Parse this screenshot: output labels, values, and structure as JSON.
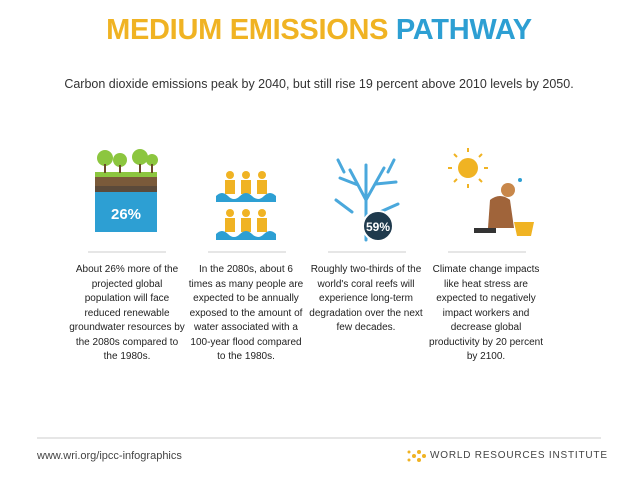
{
  "title": [
    "MEDIUM EMISSIONS",
    "PATHWAY"
  ],
  "subtitle": "Carbon dioxide emissions peak by 2040, but still rise 19 percent above 2010 levels by 2050.",
  "panels": [
    {
      "icon_label": "26%",
      "text": "About 26% more of the projected global population will face reduced renewable groundwater resources by the 2080s compared to the 1980s."
    },
    {
      "text": "In the 2080s, about 6 times as many people are expected to be annually exposed to the amount of water associated with a 100-year flood compared to the 1980s."
    },
    {
      "icon_label": "59%",
      "text": "Roughly two-thirds of the world's coral reefs will experience long-term degradation over the next few decades."
    },
    {
      "text": "Climate change impacts like heat stress are expected to negatively impact workers and decrease global productivity by 20 percent by 2100."
    }
  ],
  "footer": {
    "url": "www.wri.org/ipcc-infographics",
    "logo": "WORLD RESOURCES INSTITUTE"
  }
}
